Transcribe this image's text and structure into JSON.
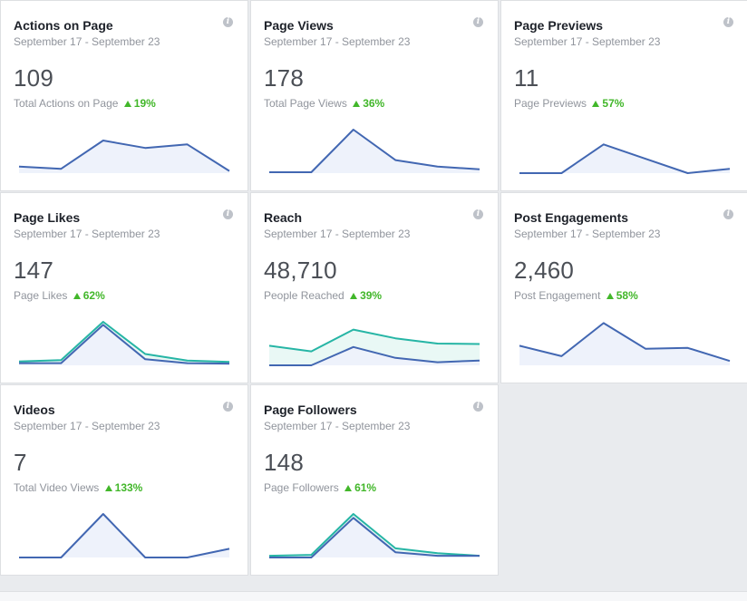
{
  "colors": {
    "primary_line": "#4267b2",
    "primary_fill": "#eef2fb",
    "secondary_line": "#26b5a5",
    "secondary_fill": "#e9f8f5",
    "increase": "#42b72a"
  },
  "cards": [
    {
      "id": "actions-on-page",
      "title": "Actions on Page",
      "date_range": "September 17 - September 23",
      "value": "109",
      "sub_label": "Total Actions on Page",
      "change": "19%",
      "info_icon": "info-icon"
    },
    {
      "id": "page-views",
      "title": "Page Views",
      "date_range": "September 17 - September 23",
      "value": "178",
      "sub_label": "Total Page Views",
      "change": "36%",
      "info_icon": "info-icon"
    },
    {
      "id": "page-previews",
      "title": "Page Previews",
      "date_range": "September 17 - September 23",
      "value": "11",
      "sub_label": "Page Previews",
      "change": "57%",
      "info_icon": "info-icon"
    },
    {
      "id": "page-likes",
      "title": "Page Likes",
      "date_range": "September 17 - September 23",
      "value": "147",
      "sub_label": "Page Likes",
      "change": "62%",
      "info_icon": "info-icon"
    },
    {
      "id": "reach",
      "title": "Reach",
      "date_range": "September 17 - September 23",
      "value": "48,710",
      "sub_label": "People Reached",
      "change": "39%",
      "info_icon": "info-icon"
    },
    {
      "id": "post-engagements",
      "title": "Post Engagements",
      "date_range": "September 17 - September 23",
      "value": "2,460",
      "sub_label": "Post Engagement",
      "change": "58%",
      "info_icon": "info-icon"
    },
    {
      "id": "videos",
      "title": "Videos",
      "date_range": "September 17 - September 23",
      "value": "7",
      "sub_label": "Total Video Views",
      "change": "133%",
      "info_icon": "info-icon"
    },
    {
      "id": "page-followers",
      "title": "Page Followers",
      "date_range": "September 17 - September 23",
      "value": "148",
      "sub_label": "Page Followers",
      "change": "61%",
      "info_icon": "info-icon"
    }
  ],
  "chart_data": [
    {
      "type": "area",
      "card": "actions-on-page",
      "ylim": [
        0,
        1
      ],
      "series": [
        {
          "values": [
            0.15,
            0.1,
            0.75,
            0.58,
            0.66,
            0.05
          ]
        }
      ]
    },
    {
      "type": "area",
      "card": "page-views",
      "ylim": [
        0,
        1
      ],
      "series": [
        {
          "values": [
            0.02,
            0.02,
            1.0,
            0.3,
            0.15,
            0.09
          ]
        }
      ]
    },
    {
      "type": "area",
      "card": "page-previews",
      "ylim": [
        0,
        1
      ],
      "series": [
        {
          "values": [
            0.0,
            0.0,
            0.66,
            0.33,
            0.0,
            0.1
          ]
        }
      ]
    },
    {
      "type": "area",
      "card": "page-likes",
      "ylim": [
        0,
        1
      ],
      "series": [
        {
          "values": [
            0.05,
            0.05,
            0.93,
            0.14,
            0.05,
            0.04
          ]
        },
        {
          "values": [
            0.09,
            0.12,
            1.0,
            0.26,
            0.11,
            0.08
          ]
        }
      ]
    },
    {
      "type": "area",
      "card": "reach",
      "ylim": [
        0,
        1
      ],
      "series": [
        {
          "values": [
            0.0,
            0.0,
            0.42,
            0.17,
            0.07,
            0.11
          ]
        },
        {
          "values": [
            0.45,
            0.32,
            0.82,
            0.62,
            0.5,
            0.49
          ]
        }
      ]
    },
    {
      "type": "area",
      "card": "post-engagements",
      "ylim": [
        0,
        1
      ],
      "series": [
        {
          "values": [
            0.45,
            0.21,
            0.97,
            0.38,
            0.4,
            0.1
          ]
        }
      ]
    },
    {
      "type": "area",
      "card": "videos",
      "ylim": [
        0,
        1
      ],
      "series": [
        {
          "values": [
            0.0,
            0.0,
            1.0,
            0.0,
            0.0,
            0.2
          ]
        }
      ]
    },
    {
      "type": "area",
      "card": "page-followers",
      "ylim": [
        0,
        1
      ],
      "series": [
        {
          "values": [
            0.0,
            0.0,
            0.91,
            0.12,
            0.04,
            0.04
          ]
        },
        {
          "values": [
            0.04,
            0.06,
            1.0,
            0.21,
            0.1,
            0.04
          ]
        }
      ]
    }
  ]
}
